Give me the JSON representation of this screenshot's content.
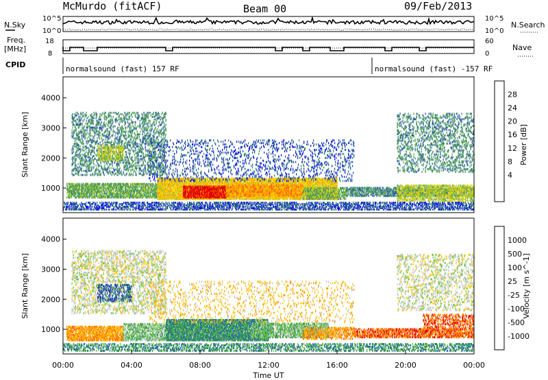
{
  "header": {
    "title_left": "McMurdo (fitACF)",
    "title_center": "Beam 00",
    "title_right": "09/Feb/2013"
  },
  "status_panels": {
    "noise": {
      "left_label": "N.Sky",
      "right_label": "N.Search",
      "left_ticks": [
        "10^5",
        "10^0"
      ],
      "right_ticks": [
        "10^5",
        "10^0"
      ]
    },
    "freq": {
      "left_label_line1": "Freq.",
      "left_label_line2": "[MHz]",
      "right_label": "Nave",
      "left_ticks": [
        "18",
        "8"
      ],
      "right_ticks": [
        "60",
        "0"
      ]
    },
    "cpid": {
      "label": "CPID",
      "segments": [
        {
          "text": "normalsound (fast) 157 RF",
          "start_hour": 0
        },
        {
          "text": "normalsound (fast) -157 RF",
          "start_hour": 18
        }
      ]
    }
  },
  "chart_data": [
    {
      "type": "heatmap",
      "name": "power",
      "xlabel": "",
      "ylabel": "Slant Range [km]",
      "xlim": [
        0,
        24
      ],
      "ylim": [
        180,
        4700
      ],
      "y_ticks": [
        "1000",
        "2000",
        "3000",
        "4000"
      ],
      "colorbar_label": "Power [dB]",
      "colorbar_ticks": [
        "28",
        "24",
        "20",
        "16",
        "12",
        "8",
        "4"
      ],
      "colorbar_colors": [
        "#e00000",
        "#ff5000",
        "#ff9a00",
        "#f8d000",
        "#b4cc2c",
        "#5aa84c",
        "#3d8c6c",
        "#2850b0",
        "#1010ff"
      ],
      "scatter_regions": [
        {
          "t0": 0.0,
          "t1": 24.0,
          "r0": 250,
          "r1": 500,
          "level": 1,
          "density": 0.55
        },
        {
          "t0": 0.2,
          "t1": 6.0,
          "r0": 650,
          "r1": 1150,
          "level": 3,
          "density": 0.7
        },
        {
          "t0": 5.5,
          "t1": 16.0,
          "r0": 600,
          "r1": 1300,
          "level": 5,
          "density": 0.85
        },
        {
          "t0": 7.0,
          "t1": 9.5,
          "r0": 650,
          "r1": 1050,
          "level": 8,
          "density": 0.8
        },
        {
          "t0": 9.5,
          "t1": 14.0,
          "r0": 700,
          "r1": 1100,
          "level": 6,
          "density": 0.7
        },
        {
          "t0": 14.0,
          "t1": 16.5,
          "r0": 600,
          "r1": 1000,
          "level": 3,
          "density": 0.5
        },
        {
          "t0": 16.5,
          "t1": 24.0,
          "r0": 700,
          "r1": 1000,
          "level": 2,
          "density": 0.6
        },
        {
          "t0": 19.5,
          "t1": 24.0,
          "r0": 550,
          "r1": 1100,
          "level": 4,
          "density": 0.6
        },
        {
          "t0": 0.5,
          "t1": 6.0,
          "r0": 1400,
          "r1": 3500,
          "level": 2,
          "density": 0.3
        },
        {
          "t0": 2.0,
          "t1": 3.5,
          "r0": 1900,
          "r1": 2400,
          "level": 4,
          "density": 0.5
        },
        {
          "t0": 5.0,
          "t1": 17.0,
          "r0": 1200,
          "r1": 2600,
          "level": 1,
          "density": 0.15
        },
        {
          "t0": 19.5,
          "t1": 24.0,
          "r0": 1500,
          "r1": 3500,
          "level": 2,
          "density": 0.25
        }
      ]
    },
    {
      "type": "heatmap",
      "name": "velocity",
      "xlabel": "Time UT",
      "ylabel": "Slant Range [km]",
      "xlim": [
        0,
        24
      ],
      "ylim": [
        180,
        4700
      ],
      "x_ticks": [
        "00:00",
        "04:00",
        "08:00",
        "12:00",
        "16:00",
        "20:00",
        "00:00"
      ],
      "y_ticks": [
        "1000",
        "2000",
        "3000",
        "4000"
      ],
      "colorbar_label": "Velocity [m s^-1]",
      "colorbar_ticks": [
        "1000",
        "500",
        "100",
        "25",
        "-25",
        "-100",
        "-500",
        "-1000"
      ],
      "colorbar_colors": [
        "#1d2aa8",
        "#2a6ab0",
        "#2e8c60",
        "#64c248",
        "#c8c8c8",
        "#ffc600",
        "#ff9a00",
        "#ff6400",
        "#e00000"
      ],
      "scatter_regions": [
        {
          "t0": 0.0,
          "t1": 24.0,
          "r0": 250,
          "r1": 500,
          "level": 2,
          "density": 0.45
        },
        {
          "t0": 0.2,
          "t1": 3.5,
          "r0": 600,
          "r1": 1100,
          "level": 6,
          "density": 0.7
        },
        {
          "t0": 3.5,
          "t1": 7.0,
          "r0": 600,
          "r1": 1200,
          "level": 3,
          "density": 0.6
        },
        {
          "t0": 6.0,
          "t1": 12.0,
          "r0": 600,
          "r1": 1300,
          "level": 2,
          "density": 0.85
        },
        {
          "t0": 11.0,
          "t1": 15.5,
          "r0": 700,
          "r1": 1200,
          "level": 3,
          "density": 0.7
        },
        {
          "t0": 14.0,
          "t1": 17.0,
          "r0": 650,
          "r1": 1050,
          "level": 6,
          "density": 0.5
        },
        {
          "t0": 17.0,
          "t1": 24.0,
          "r0": 700,
          "r1": 1000,
          "level": 7,
          "density": 0.65
        },
        {
          "t0": 21.0,
          "t1": 24.0,
          "r0": 1000,
          "r1": 1500,
          "level": 7,
          "density": 0.45
        },
        {
          "t0": 0.5,
          "t1": 6.0,
          "r0": 1500,
          "r1": 3600,
          "level": 4,
          "density": 0.3
        },
        {
          "t0": 2.0,
          "t1": 4.0,
          "r0": 1900,
          "r1": 2500,
          "level": 1,
          "density": 0.4
        },
        {
          "t0": 5.0,
          "t1": 17.0,
          "r0": 1200,
          "r1": 2600,
          "level": 5,
          "density": 0.12
        },
        {
          "t0": 19.5,
          "t1": 24.0,
          "r0": 1600,
          "r1": 3500,
          "level": 4,
          "density": 0.22
        }
      ]
    }
  ]
}
